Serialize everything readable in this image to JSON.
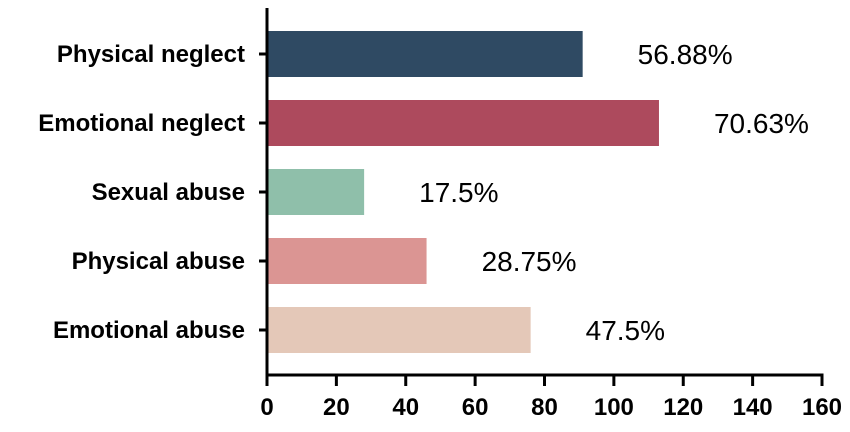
{
  "chart_data": {
    "type": "bar",
    "orientation": "horizontal",
    "categories": [
      "Physical neglect",
      "Emotional neglect",
      "Sexual abuse",
      "Physical abuse",
      "Emotional abuse"
    ],
    "values": [
      91,
      113,
      28,
      46,
      76
    ],
    "data_labels": [
      "56.88%",
      "70.63%",
      "17.5%",
      "28.75%",
      "47.5%"
    ],
    "colors": [
      "#2f4a63",
      "#ad4a5d",
      "#8fbfaa",
      "#db9593",
      "#e4c8b8"
    ],
    "xlim": [
      0,
      160
    ],
    "xticks": [
      0,
      20,
      40,
      60,
      80,
      100,
      120,
      140,
      160
    ],
    "grid": false,
    "title": "",
    "xlabel": "",
    "ylabel": ""
  }
}
